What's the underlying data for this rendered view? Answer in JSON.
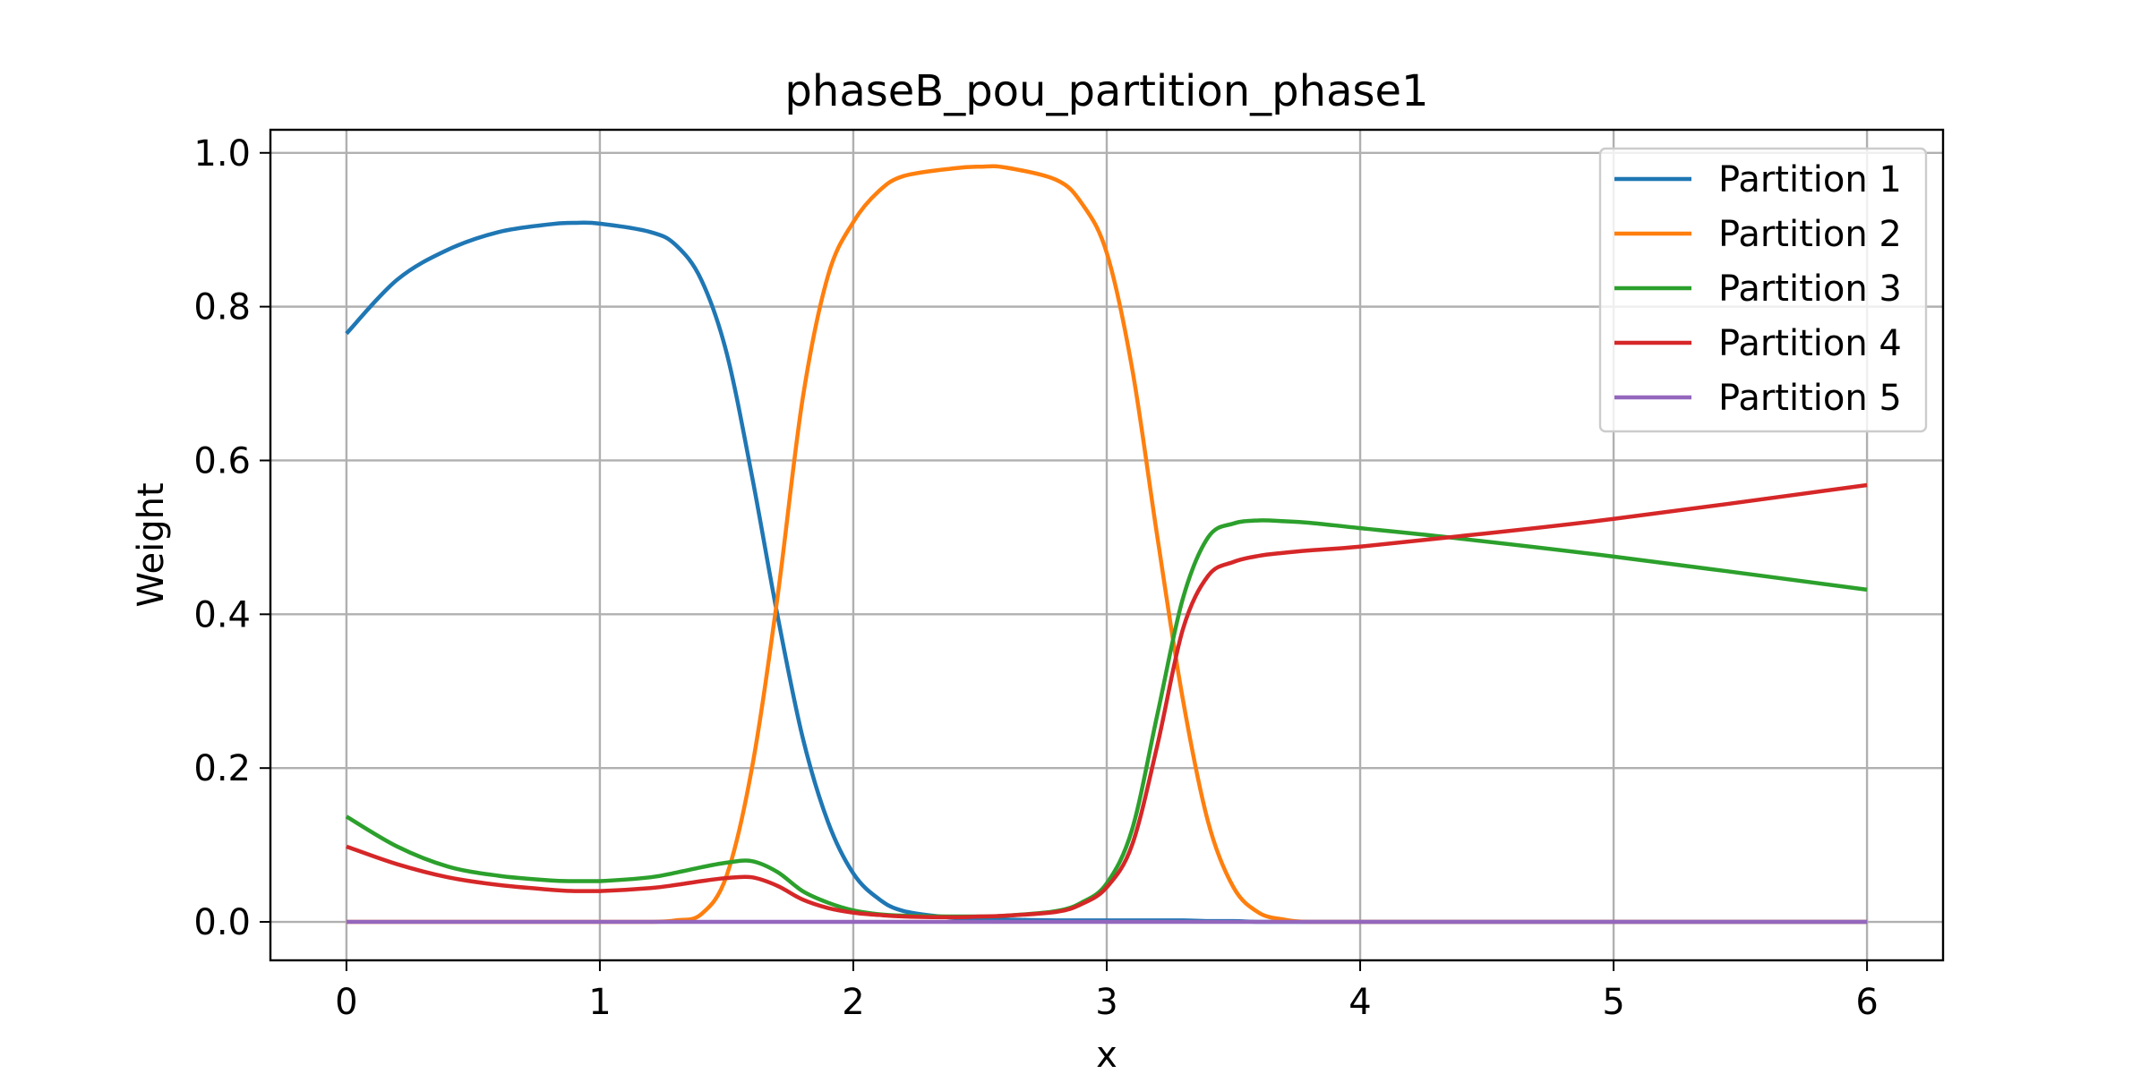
{
  "chart_data": {
    "type": "line",
    "title": "phaseB_pou_partition_phase1",
    "xlabel": "x",
    "ylabel": "Weight",
    "xlim": [
      -0.3,
      6.3
    ],
    "ylim": [
      -0.05,
      1.03
    ],
    "xticks": [
      0,
      1,
      2,
      3,
      4,
      5,
      6
    ],
    "xtick_labels": [
      "0",
      "1",
      "2",
      "3",
      "4",
      "5",
      "6"
    ],
    "yticks": [
      0.0,
      0.2,
      0.4,
      0.6,
      0.8,
      1.0
    ],
    "ytick_labels": [
      "0.0",
      "0.2",
      "0.4",
      "0.6",
      "0.8",
      "1.0"
    ],
    "grid": true,
    "legend_position": "top-right",
    "x": [
      0,
      0.2,
      0.4,
      0.6,
      0.8,
      0.9,
      1.0,
      1.2,
      1.3,
      1.4,
      1.5,
      1.6,
      1.7,
      1.8,
      1.9,
      2.0,
      2.1,
      2.2,
      2.4,
      2.5,
      2.6,
      2.8,
      2.9,
      3.0,
      3.1,
      3.2,
      3.3,
      3.4,
      3.5,
      3.6,
      3.7,
      3.8,
      4.0,
      4.35,
      5.0,
      6.0
    ],
    "series": [
      {
        "name": "Partition 1",
        "color": "#1f77b4",
        "values": [
          0.765,
          0.835,
          0.874,
          0.897,
          0.907,
          0.909,
          0.908,
          0.897,
          0.88,
          0.835,
          0.74,
          0.58,
          0.4,
          0.24,
          0.13,
          0.063,
          0.03,
          0.014,
          0.005,
          0.004,
          0.003,
          0.002,
          0.002,
          0.002,
          0.002,
          0.002,
          0.002,
          0.001,
          0.001,
          0.0,
          0.0,
          0.0,
          0.0,
          0.0,
          0.0,
          0.0
        ]
      },
      {
        "name": "Partition 2",
        "color": "#ff7f0e",
        "values": [
          0.0,
          0.0,
          0.0,
          0.0,
          0.0,
          0.0,
          0.0,
          0.0,
          0.002,
          0.01,
          0.06,
          0.2,
          0.42,
          0.68,
          0.84,
          0.91,
          0.95,
          0.97,
          0.98,
          0.982,
          0.981,
          0.965,
          0.935,
          0.87,
          0.72,
          0.5,
          0.29,
          0.13,
          0.045,
          0.012,
          0.003,
          0.0,
          0.0,
          0.0,
          0.0,
          0.0
        ]
      },
      {
        "name": "Partition 3",
        "color": "#2ca02c",
        "values": [
          0.137,
          0.098,
          0.072,
          0.06,
          0.054,
          0.053,
          0.053,
          0.058,
          0.064,
          0.071,
          0.077,
          0.079,
          0.065,
          0.04,
          0.025,
          0.015,
          0.01,
          0.008,
          0.007,
          0.007,
          0.008,
          0.014,
          0.025,
          0.05,
          0.12,
          0.27,
          0.42,
          0.5,
          0.518,
          0.522,
          0.521,
          0.519,
          0.512,
          0.5,
          0.475,
          0.432
        ]
      },
      {
        "name": "Partition 4",
        "color": "#d62728",
        "values": [
          0.098,
          0.075,
          0.058,
          0.048,
          0.042,
          0.04,
          0.04,
          0.044,
          0.048,
          0.053,
          0.057,
          0.058,
          0.047,
          0.029,
          0.018,
          0.012,
          0.009,
          0.007,
          0.006,
          0.007,
          0.008,
          0.013,
          0.023,
          0.045,
          0.1,
          0.23,
          0.38,
          0.45,
          0.468,
          0.476,
          0.48,
          0.483,
          0.488,
          0.5,
          0.524,
          0.568
        ]
      },
      {
        "name": "Partition 5",
        "color": "#9467bd",
        "values": [
          0.0,
          0.0,
          0.0,
          0.0,
          0.0,
          0.0,
          0.0,
          0.0,
          0.0,
          0.0,
          0.0,
          0.0,
          0.0,
          0.0,
          0.0,
          0.0,
          0.0,
          0.0,
          0.0,
          0.0,
          0.0,
          0.0,
          0.0,
          0.0,
          0.0,
          0.0,
          0.0,
          0.0,
          0.0,
          0.0,
          0.0,
          0.0,
          0.0,
          0.0,
          0.0,
          0.0
        ]
      }
    ]
  }
}
